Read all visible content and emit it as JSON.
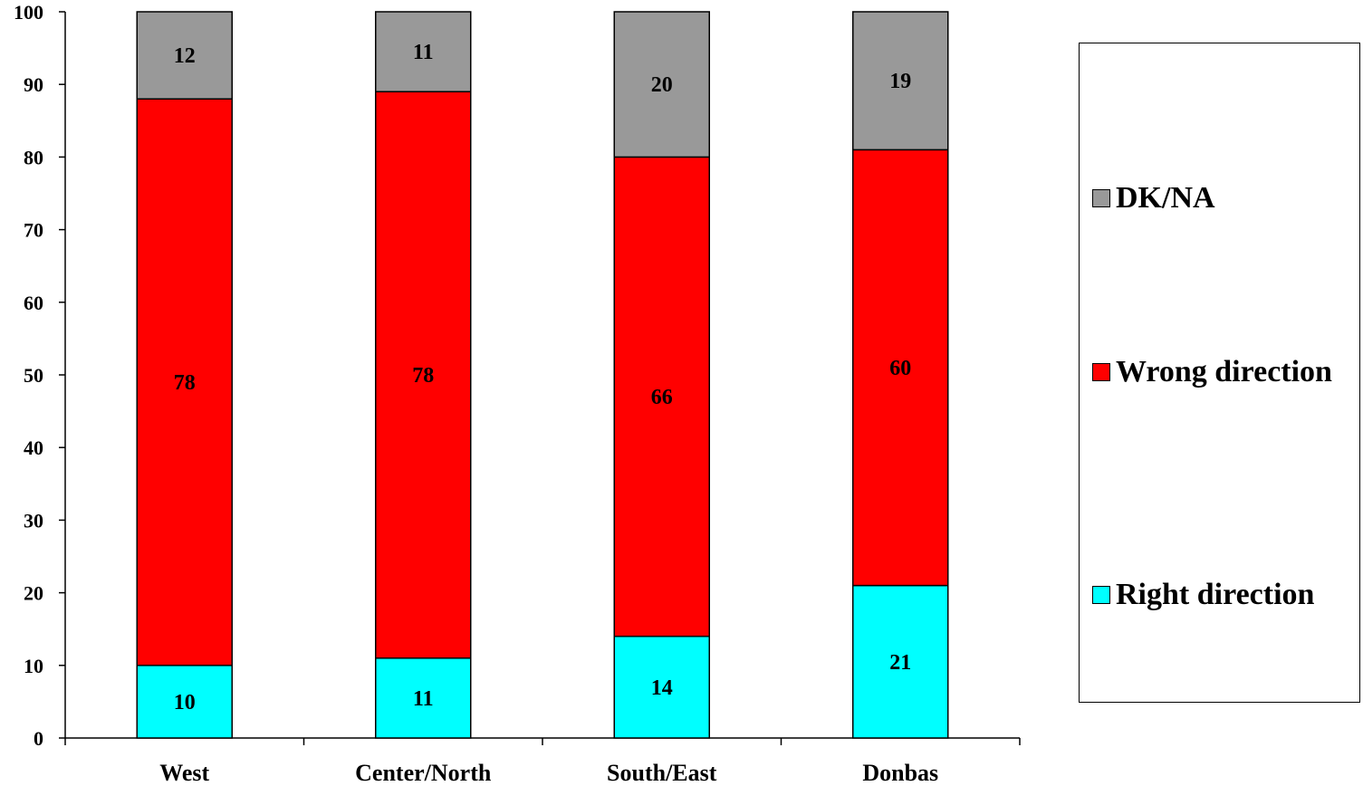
{
  "chart_data": {
    "type": "bar",
    "stacked": true,
    "categories": [
      "West",
      "Center/North",
      "South/East",
      "Donbas"
    ],
    "series": [
      {
        "name": "Right direction",
        "color": "#00ffff",
        "values": [
          10,
          11,
          14,
          21
        ]
      },
      {
        "name": "Wrong direction",
        "color": "#ff0000",
        "values": [
          78,
          78,
          66,
          60
        ]
      },
      {
        "name": "DK/NA",
        "color": "#999999",
        "values": [
          12,
          11,
          20,
          19
        ]
      }
    ],
    "ylim": [
      0,
      100
    ],
    "yticks": [
      "0",
      "10",
      "20",
      "30",
      "40",
      "50",
      "60",
      "70",
      "80",
      "90",
      "100"
    ],
    "grid": false,
    "legend_position": "right"
  }
}
